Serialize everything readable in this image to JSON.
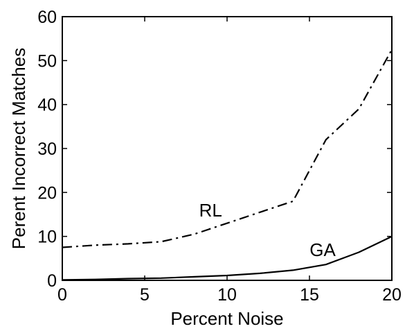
{
  "chart_data": {
    "type": "line",
    "xlabel": "Percent Noise",
    "ylabel": "Perent Incorrect Matches",
    "xlim": [
      0,
      20
    ],
    "ylim": [
      0,
      60
    ],
    "xticks": [
      0,
      5,
      10,
      15,
      20
    ],
    "yticks": [
      0,
      10,
      20,
      30,
      40,
      50,
      60
    ],
    "xtick_labels": [
      "0",
      "5",
      "10",
      "15",
      "20"
    ],
    "ytick_labels": [
      "0",
      "10",
      "20",
      "30",
      "40",
      "50",
      "60"
    ],
    "grid": false,
    "legend": "none",
    "series": [
      {
        "name": "RL",
        "line_style": "dash-dot",
        "color": "#000000",
        "x": [
          0,
          2,
          4,
          6,
          8,
          10,
          12,
          14,
          16,
          18,
          20
        ],
        "y": [
          7.5,
          8.0,
          8.3,
          8.8,
          10.5,
          13.0,
          15.5,
          18.0,
          32.0,
          39.0,
          52.5
        ]
      },
      {
        "name": "GA",
        "line_style": "solid",
        "color": "#000000",
        "x": [
          0,
          2,
          4,
          6,
          8,
          10,
          12,
          14,
          16,
          18,
          20
        ],
        "y": [
          0.1,
          0.2,
          0.4,
          0.5,
          0.8,
          1.1,
          1.6,
          2.3,
          3.6,
          6.4,
          10.0
        ]
      }
    ],
    "annotations": [
      {
        "text": "RL",
        "x": 9.0,
        "y": 14.5
      },
      {
        "text": "GA",
        "x": 15.8,
        "y": 5.5
      }
    ]
  }
}
